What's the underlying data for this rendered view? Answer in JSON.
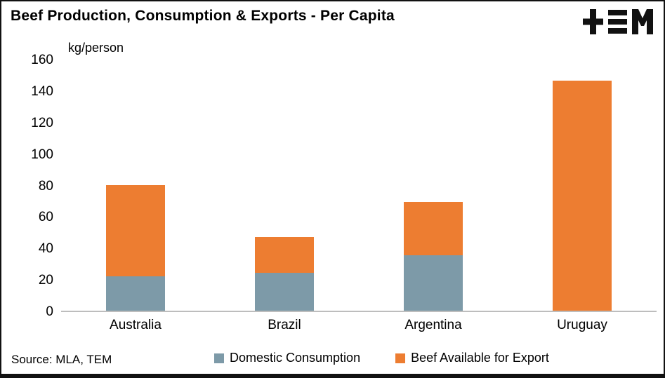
{
  "header": {
    "logo_name": "TEM"
  },
  "footer": {
    "source": "Source: MLA, TEM"
  },
  "chart_data": {
    "type": "bar",
    "stacked": true,
    "title": "Beef Production, Consumption & Exports - Per Capita",
    "unit_label": "kg/person",
    "categories": [
      "Australia",
      "Brazil",
      "Argentina",
      "Uruguay"
    ],
    "series": [
      {
        "name": "Domestic Consumption",
        "color": "#7d9aa8",
        "values": [
          22,
          24,
          35,
          0
        ]
      },
      {
        "name": "Beef Available for Export",
        "color": "#ed7d31",
        "values": [
          58,
          23,
          34,
          146
        ]
      }
    ],
    "totals": [
      80,
      47,
      69,
      146
    ],
    "ylim": [
      0,
      160
    ],
    "ytick_interval": 20,
    "grid": false,
    "legend_position": "bottom",
    "axis_line_color": "#bdbdbd",
    "source": "Source: MLA, TEM"
  }
}
